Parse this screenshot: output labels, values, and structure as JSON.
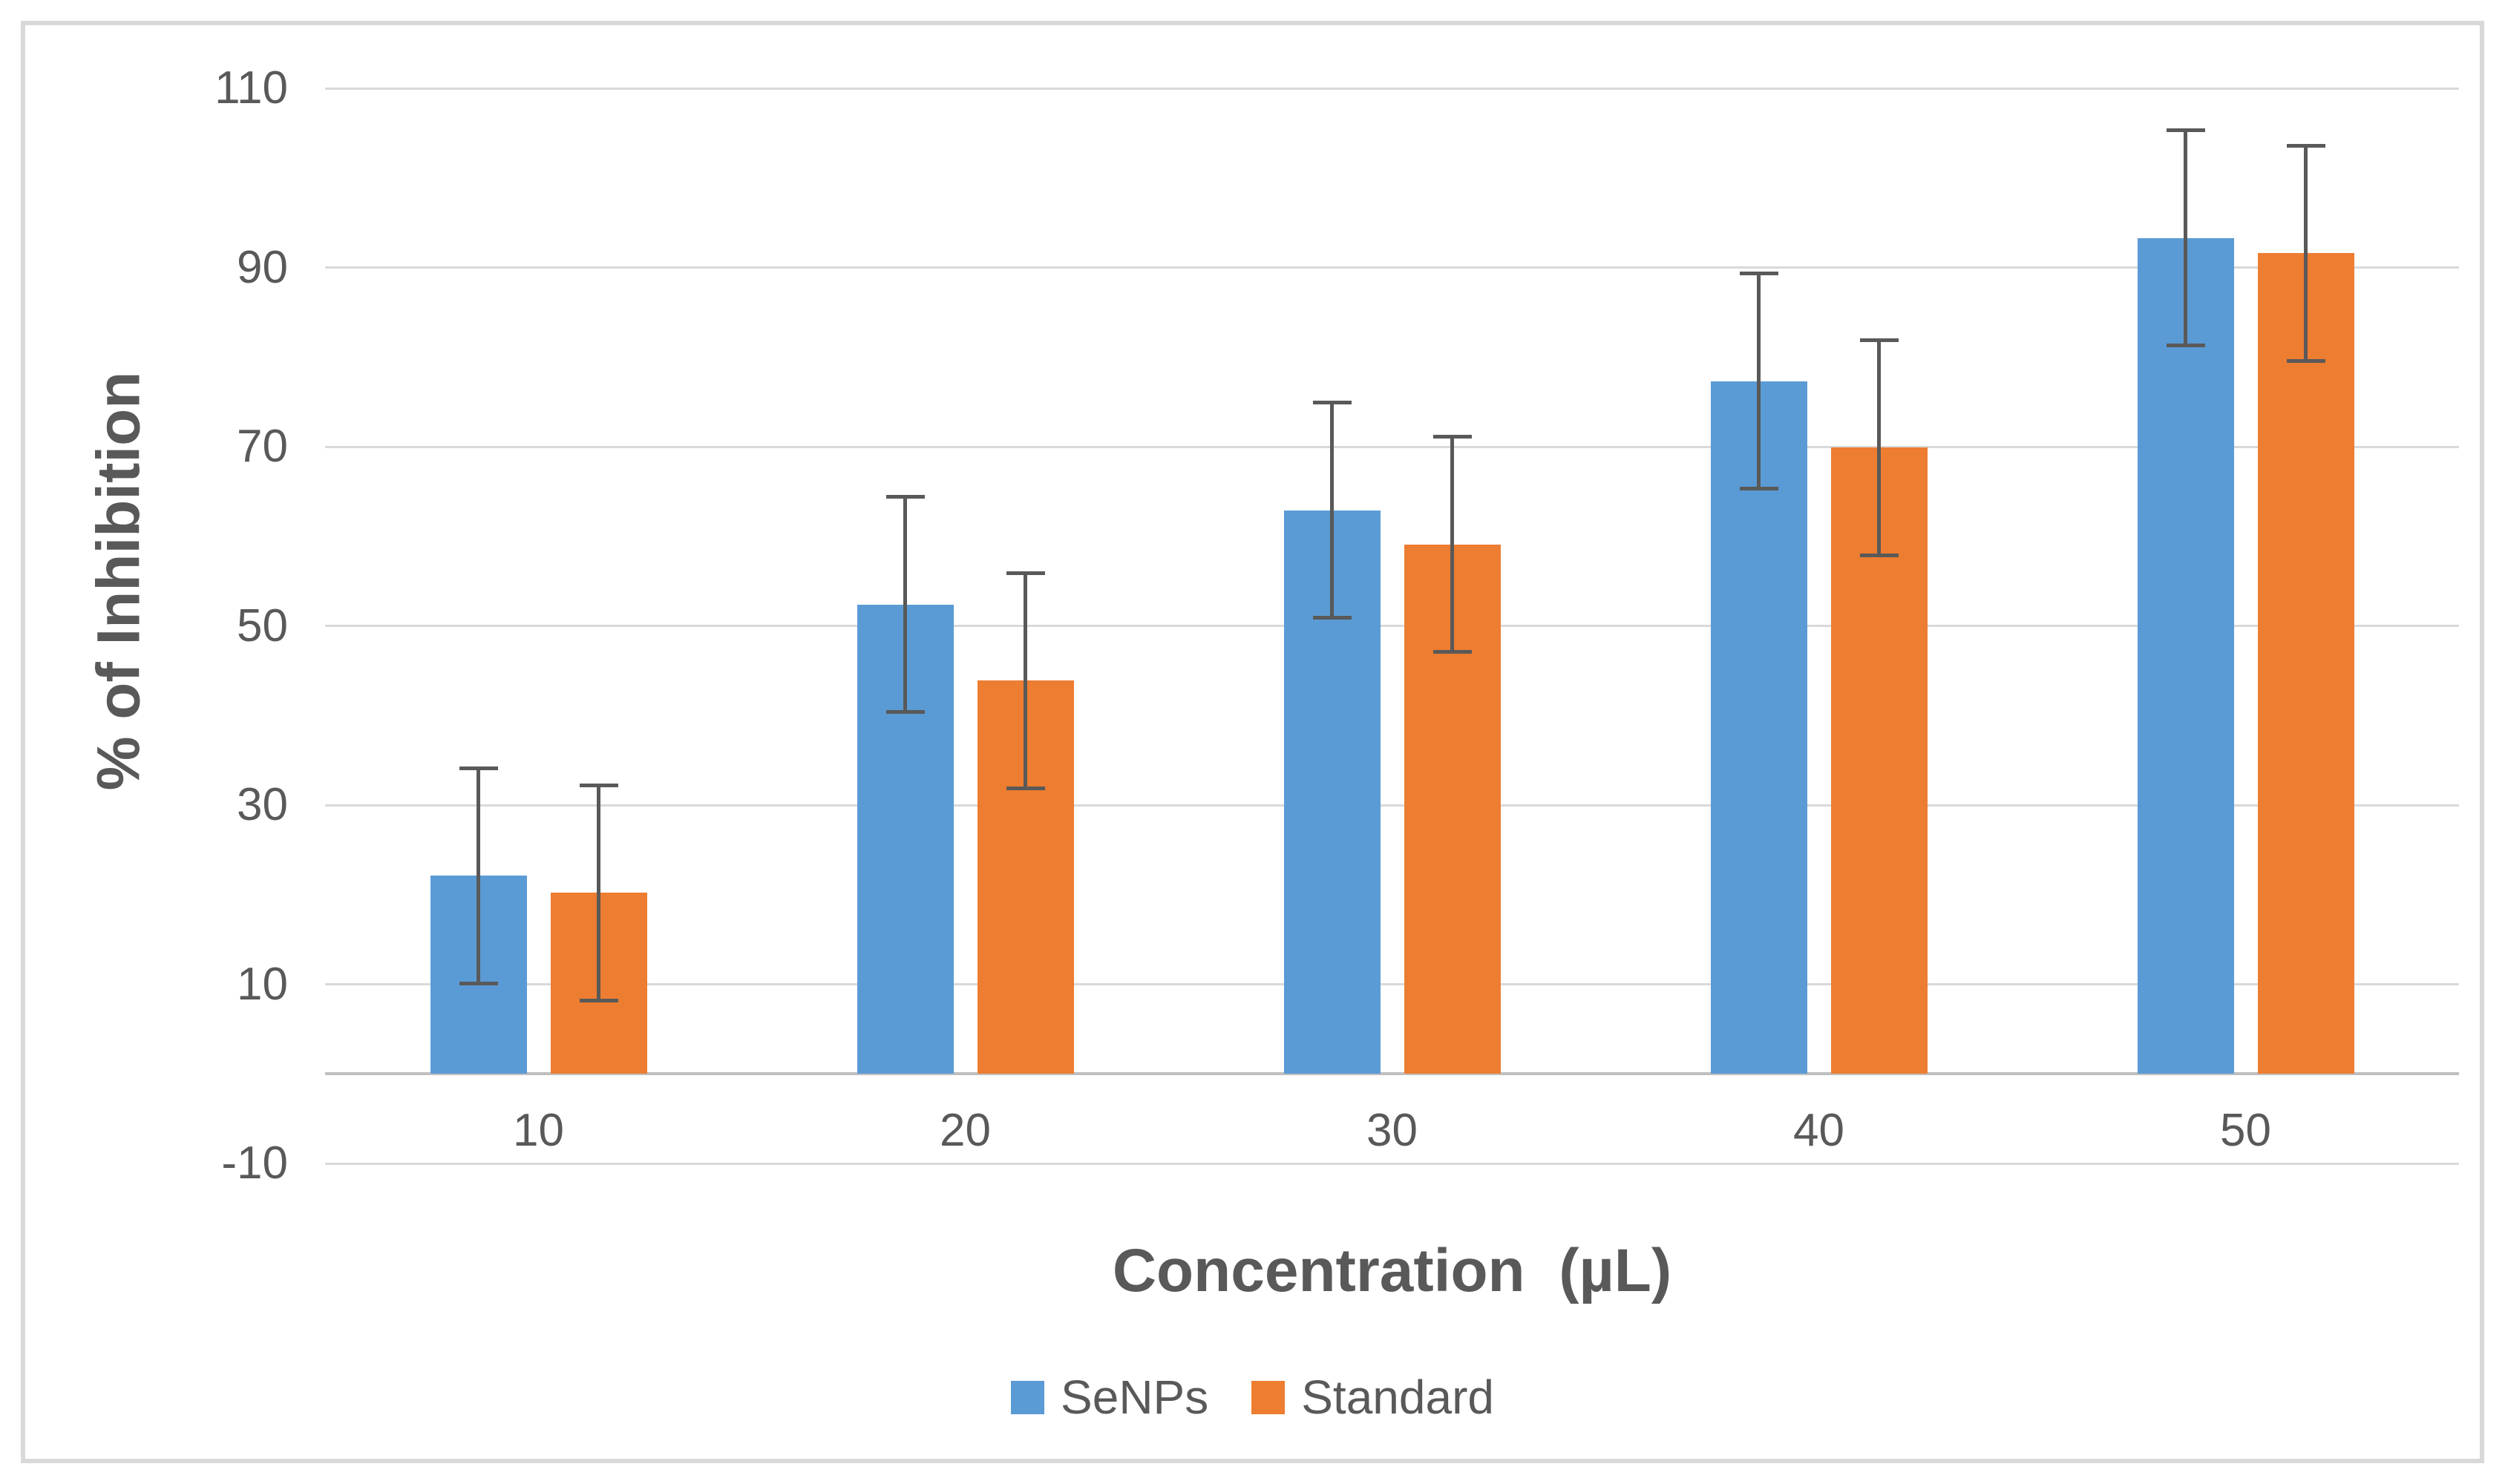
{
  "chart_data": {
    "type": "bar",
    "title": "",
    "categories": [
      "10",
      "20",
      "30",
      "40",
      "50"
    ],
    "series": [
      {
        "name": "SeNPs",
        "color": "#5B9BD5",
        "values": [
          22.1,
          52.4,
          62.9,
          77.3,
          93.3
        ],
        "errors": [
          12,
          12,
          12,
          12,
          12
        ]
      },
      {
        "name": "Standard",
        "color": "#ED7D31",
        "values": [
          20.2,
          43.9,
          59.1,
          69.9,
          91.6
        ],
        "errors": [
          12,
          12,
          12,
          12,
          12
        ]
      }
    ],
    "xlabel": "Concentration  (µL)",
    "ylabel": "% of Inhibition",
    "ylim": [
      -10,
      110
    ],
    "yticks": [
      110,
      90,
      70,
      50,
      30,
      10,
      -10
    ],
    "grid": true,
    "legend_position": "bottom",
    "colors": {
      "gridline": "#D9D9D9",
      "axis_line": "#BFBFBF",
      "error_bar": "#595959",
      "text": "#595959",
      "frame_border": "#D9D9D9",
      "background": "#FFFFFF"
    }
  }
}
